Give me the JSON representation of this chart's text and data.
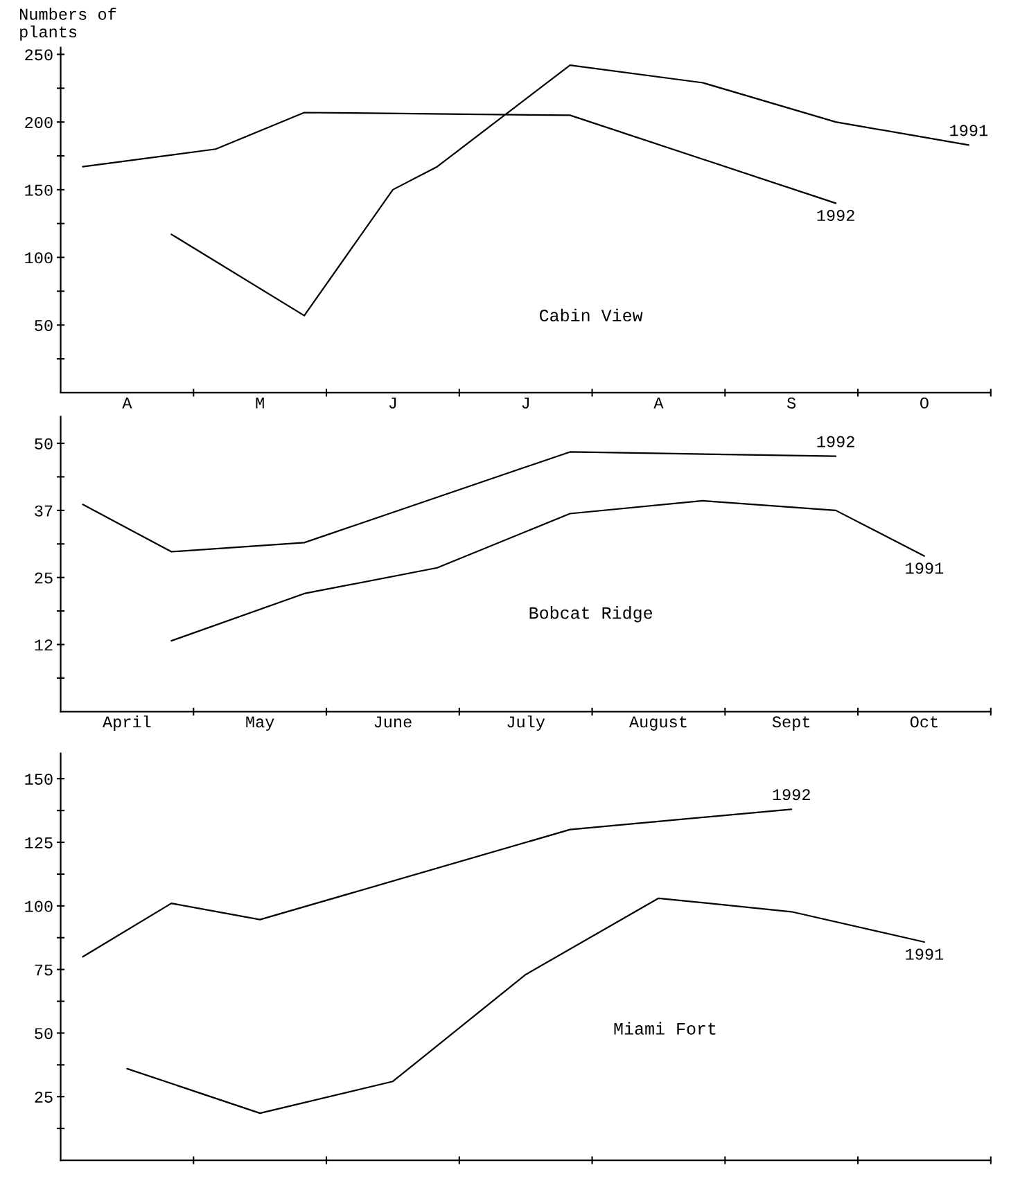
{
  "chart_data": [
    {
      "type": "line",
      "title": "Cabin View",
      "ylabel": "Numbers of plants",
      "ylim": [
        0,
        255
      ],
      "categories": [
        null,
        "A",
        null,
        null,
        "M",
        null,
        null,
        "J",
        null,
        null,
        "J",
        null,
        null,
        "A",
        null,
        null,
        "S",
        null,
        null,
        "O",
        null
      ],
      "yticks": [
        {
          "value": 25,
          "label": null
        },
        50,
        {
          "value": 75,
          "label": null
        },
        100,
        {
          "value": 125,
          "label": null
        },
        150,
        {
          "value": 175,
          "label": null
        },
        200,
        {
          "value": 225,
          "label": null
        },
        250
      ],
      "line_style": "solid",
      "grid": false,
      "legend": false,
      "series": [
        {
          "name": "1991",
          "color": "#000000",
          "values": [
            null,
            null,
            117,
            null,
            null,
            57,
            null,
            150,
            167,
            null,
            null,
            242,
            null,
            null,
            229,
            null,
            null,
            200,
            null,
            null,
            183
          ]
        },
        {
          "name": "1992",
          "color": "#000000",
          "values": [
            167,
            null,
            null,
            180,
            null,
            207,
            null,
            null,
            null,
            null,
            null,
            205,
            null,
            null,
            null,
            null,
            null,
            140,
            null,
            null,
            null
          ]
        }
      ]
    },
    {
      "type": "line",
      "title": "Bobcat Ridge",
      "ylim": [
        0,
        55
      ],
      "categories": [
        null,
        "April",
        null,
        null,
        "May",
        null,
        null,
        "June",
        null,
        null,
        "July",
        null,
        null,
        "August",
        null,
        null,
        "Sept",
        null,
        null,
        "Oct",
        null
      ],
      "yticks": [
        {
          "value": 6.25,
          "label": null
        },
        {
          "value": 12.5,
          "label": "12"
        },
        {
          "value": 18.75,
          "label": null
        },
        25,
        {
          "value": 31.25,
          "label": null
        },
        {
          "value": 37.5,
          "label": "37"
        },
        {
          "value": 43.75,
          "label": null
        },
        50
      ],
      "line_style": "solid",
      "grid": false,
      "legend": false,
      "series": [
        {
          "name": "1992",
          "color": "#000000",
          "values": [
            38.6,
            null,
            29.8,
            null,
            null,
            31.5,
            null,
            null,
            null,
            null,
            null,
            48.4,
            null,
            null,
            null,
            null,
            null,
            47.6,
            null,
            null,
            null
          ]
        },
        {
          "name": "1991",
          "color": "#000000",
          "values": [
            null,
            null,
            13.2,
            null,
            null,
            22.0,
            null,
            null,
            26.8,
            null,
            null,
            36.9,
            null,
            null,
            39.3,
            null,
            null,
            37.5,
            null,
            29.0,
            null
          ]
        }
      ]
    },
    {
      "type": "line",
      "title": "Miami Fort",
      "ylim": [
        0,
        160
      ],
      "categories": [
        null,
        null,
        null,
        null,
        null,
        null,
        null,
        null,
        null,
        null,
        null,
        null,
        null,
        null,
        null,
        null,
        null,
        null,
        null,
        null,
        null
      ],
      "yticks": [
        {
          "value": 12.5,
          "label": null
        },
        25,
        {
          "value": 37.5,
          "label": null
        },
        50,
        {
          "value": 62.5,
          "label": null
        },
        75,
        {
          "value": 87.5,
          "label": null
        },
        100,
        {
          "value": 112.5,
          "label": null
        },
        125,
        {
          "value": 137.5,
          "label": null
        },
        150
      ],
      "line_style": "solid",
      "grid": false,
      "legend": false,
      "series": [
        {
          "name": "1992",
          "color": "#000000",
          "values": [
            80,
            null,
            101,
            null,
            94.6,
            null,
            null,
            null,
            null,
            null,
            null,
            130,
            null,
            null,
            null,
            null,
            138,
            null,
            null,
            null,
            null
          ]
        },
        {
          "name": "1991",
          "color": "#000000",
          "values": [
            null,
            36,
            null,
            null,
            18.5,
            null,
            null,
            31,
            null,
            null,
            73,
            null,
            null,
            103,
            null,
            null,
            97.7,
            null,
            null,
            85.8,
            null
          ]
        }
      ]
    }
  ]
}
